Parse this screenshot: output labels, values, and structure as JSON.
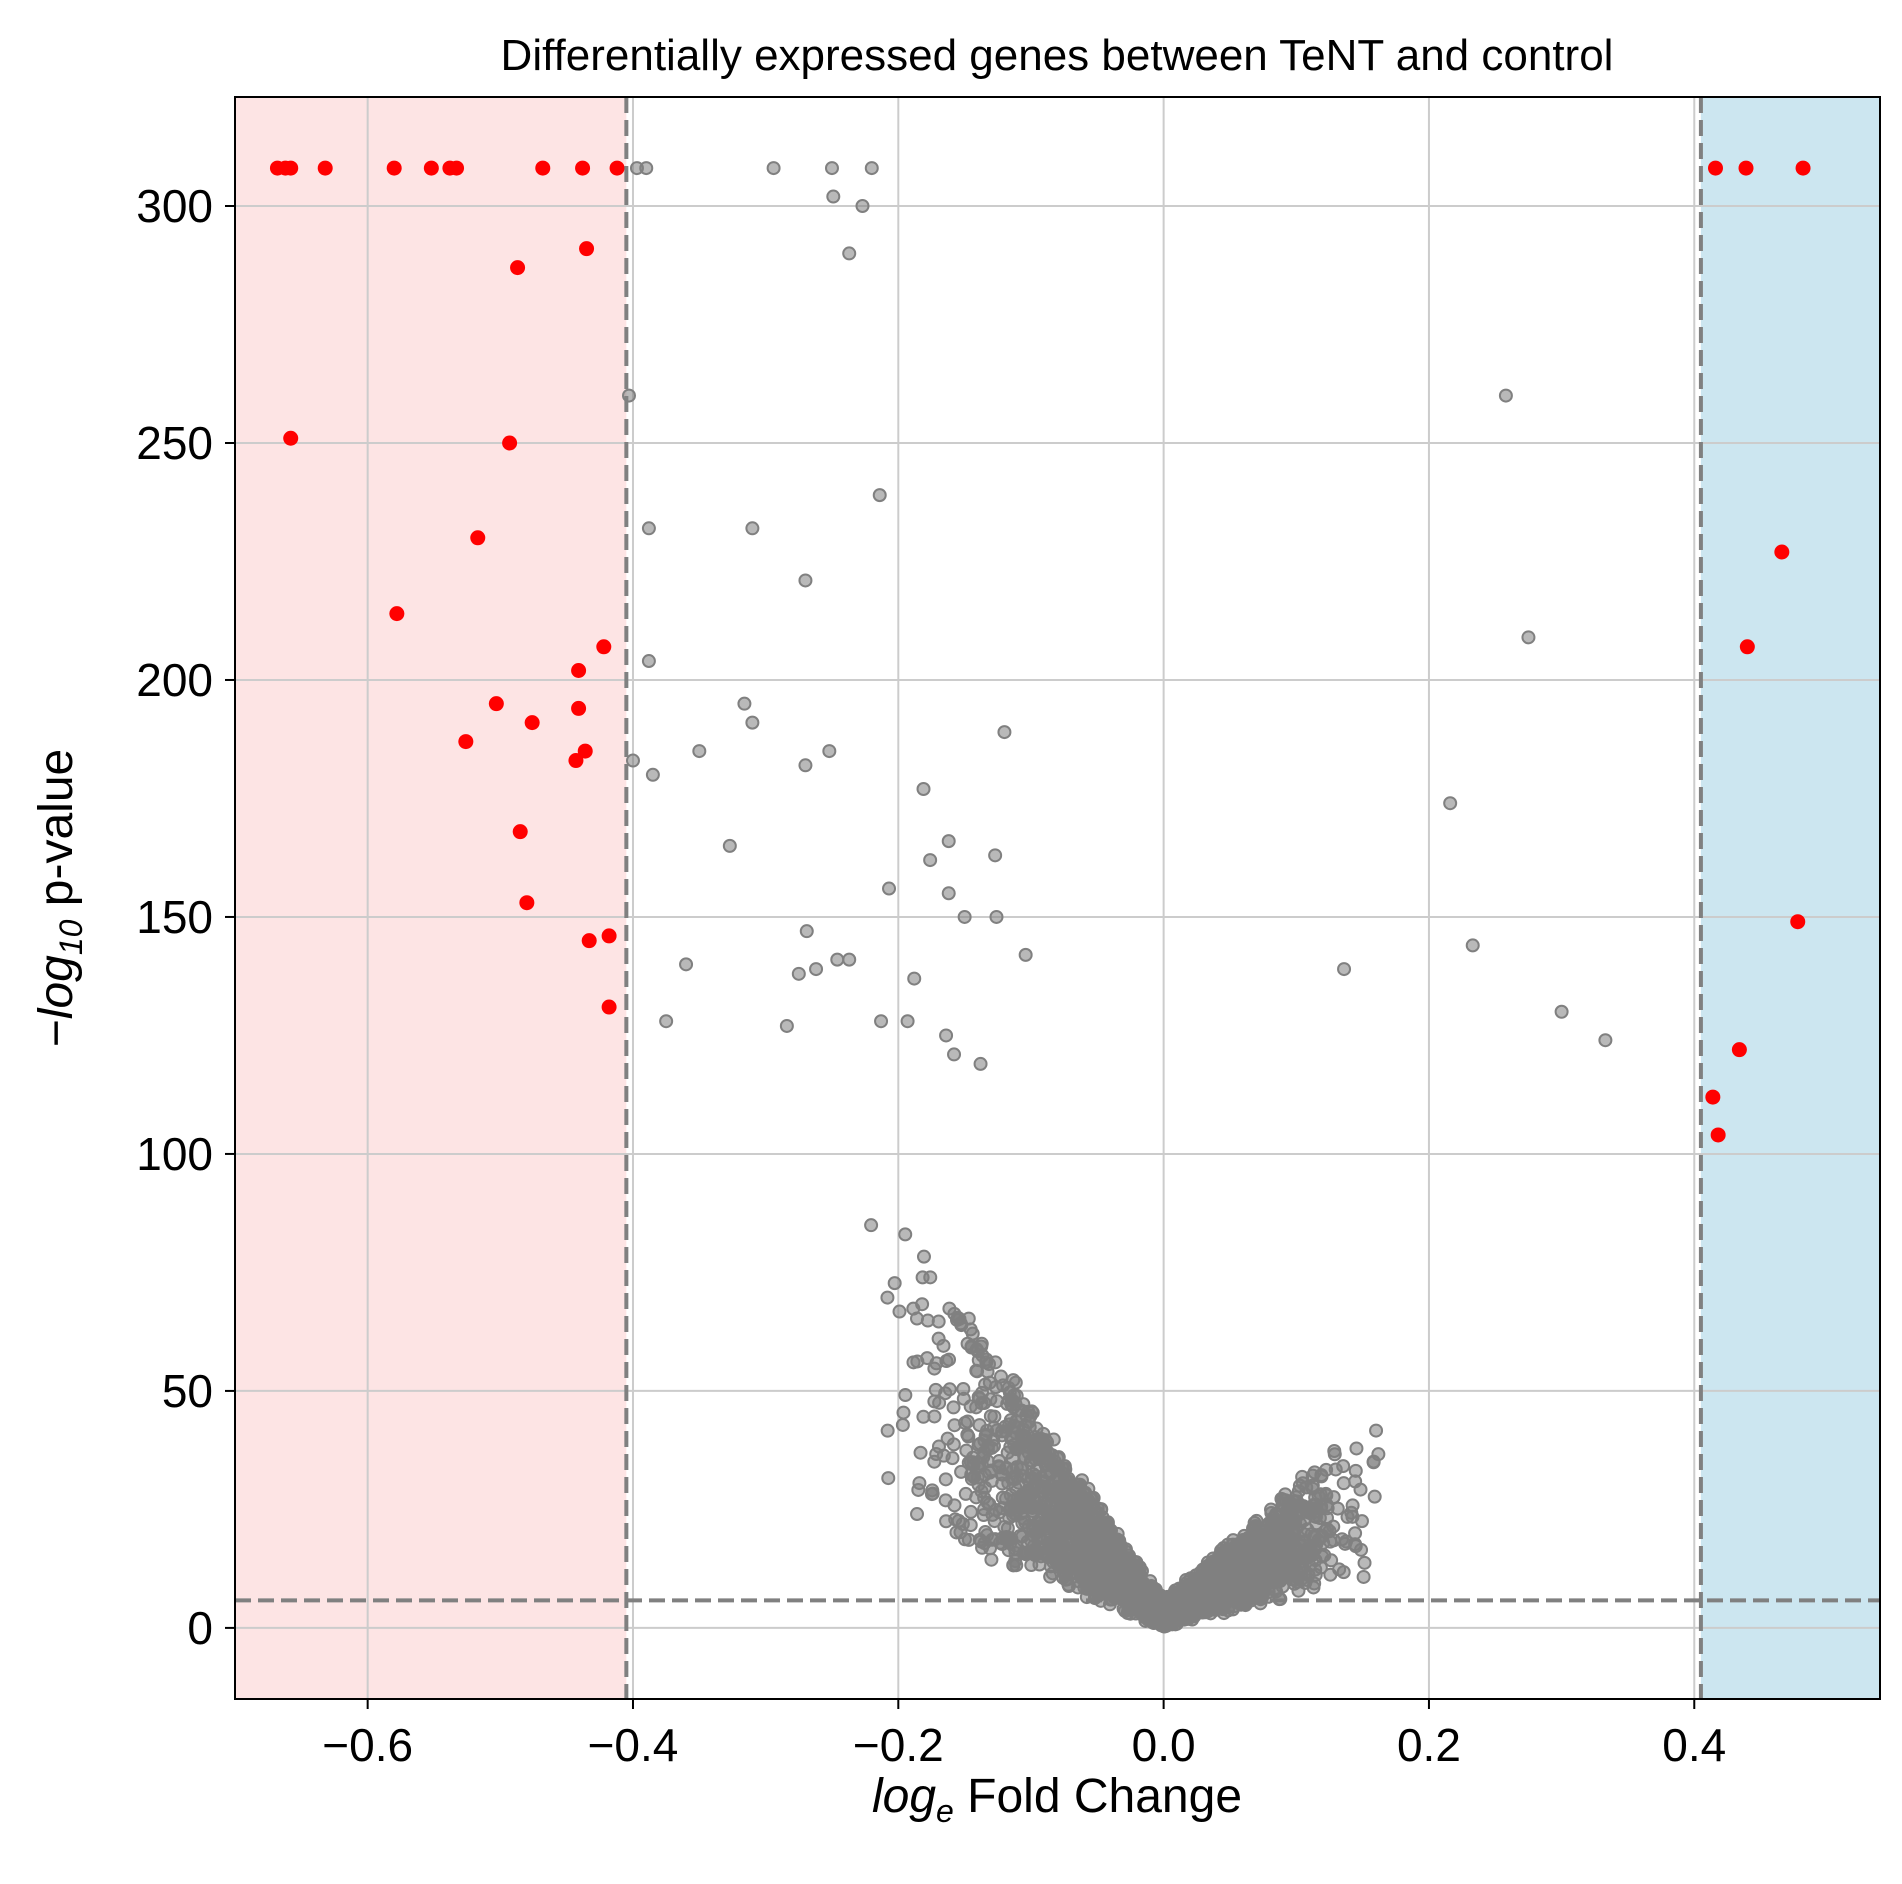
{
  "chart_data": {
    "type": "scatter",
    "title": "Differentially expressed genes between TeNT and control",
    "xlabel": {
      "italic_base": "log",
      "subscript": "e",
      "rest": " Fold Change"
    },
    "ylabel": {
      "prefix": "−",
      "italic_base": "log",
      "subscript": "10",
      "rest": " p-value"
    },
    "xlim": [
      -0.7,
      0.54
    ],
    "ylim": [
      -15,
      323
    ],
    "x_ticks": [
      -0.6,
      -0.4,
      -0.2,
      0.0,
      0.2,
      0.4
    ],
    "x_tick_labels": [
      "−0.6",
      "−0.4",
      "−0.2",
      "0.0",
      "0.2",
      "0.4"
    ],
    "y_ticks": [
      0,
      50,
      100,
      150,
      200,
      250,
      300
    ],
    "y_tick_labels": [
      "0",
      "50",
      "100",
      "150",
      "200",
      "250",
      "300"
    ],
    "grid": true,
    "thresholds": {
      "log_fc": [
        -0.405,
        0.405
      ],
      "neg_log10_p": 5.8
    },
    "region_colors": {
      "down": "#fde4e4",
      "up": "#cce6f0"
    },
    "colors": {
      "significant": "#ff0000",
      "not_significant": "#808080",
      "threshold_line": "#808080",
      "grid": "#cccccc"
    },
    "series": [
      {
        "key": "significant",
        "points": [
          [
            -0.668,
            308
          ],
          [
            -0.662,
            308
          ],
          [
            -0.658,
            308
          ],
          [
            -0.632,
            308
          ],
          [
            -0.58,
            308
          ],
          [
            -0.552,
            308
          ],
          [
            -0.538,
            308
          ],
          [
            -0.533,
            308
          ],
          [
            -0.468,
            308
          ],
          [
            -0.438,
            308
          ],
          [
            -0.412,
            308
          ],
          [
            0.416,
            308
          ],
          [
            0.439,
            308
          ],
          [
            0.482,
            308
          ],
          [
            -0.435,
            291
          ],
          [
            -0.487,
            287
          ],
          [
            -0.658,
            251
          ],
          [
            -0.493,
            250
          ],
          [
            -0.517,
            230
          ],
          [
            -0.578,
            214
          ],
          [
            -0.422,
            207
          ],
          [
            -0.441,
            202
          ],
          [
            -0.503,
            195
          ],
          [
            -0.441,
            194
          ],
          [
            -0.476,
            191
          ],
          [
            -0.526,
            187
          ],
          [
            -0.436,
            185
          ],
          [
            -0.443,
            183
          ],
          [
            -0.485,
            168
          ],
          [
            -0.48,
            153
          ],
          [
            -0.418,
            146
          ],
          [
            -0.433,
            145
          ],
          [
            -0.418,
            131
          ],
          [
            0.466,
            227
          ],
          [
            0.44,
            207
          ],
          [
            0.478,
            149
          ],
          [
            0.434,
            122
          ],
          [
            0.414,
            112
          ],
          [
            0.418,
            104
          ]
        ]
      },
      {
        "key": "not_significant",
        "points": [
          [
            -0.397,
            308
          ],
          [
            -0.39,
            308
          ],
          [
            -0.294,
            308
          ],
          [
            -0.25,
            308
          ],
          [
            -0.22,
            308
          ],
          [
            -0.249,
            302
          ],
          [
            -0.227,
            300
          ],
          [
            -0.237,
            290
          ],
          [
            -0.403,
            260
          ],
          [
            0.258,
            260
          ],
          [
            -0.214,
            239
          ],
          [
            -0.388,
            232
          ],
          [
            -0.31,
            232
          ],
          [
            -0.27,
            221
          ],
          [
            0.275,
            209
          ],
          [
            -0.388,
            204
          ],
          [
            -0.316,
            195
          ],
          [
            -0.31,
            191
          ],
          [
            -0.12,
            189
          ],
          [
            -0.4,
            183
          ],
          [
            -0.35,
            185
          ],
          [
            -0.252,
            185
          ],
          [
            -0.27,
            182
          ],
          [
            -0.385,
            180
          ],
          [
            -0.181,
            177
          ],
          [
            0.216,
            174
          ],
          [
            -0.162,
            166
          ],
          [
            -0.327,
            165
          ],
          [
            -0.176,
            162
          ],
          [
            -0.127,
            163
          ],
          [
            -0.207,
            156
          ],
          [
            -0.162,
            155
          ],
          [
            -0.269,
            147
          ],
          [
            -0.15,
            150
          ],
          [
            -0.126,
            150
          ],
          [
            -0.246,
            141
          ],
          [
            -0.237,
            141
          ],
          [
            -0.262,
            139
          ],
          [
            -0.36,
            140
          ],
          [
            -0.104,
            142
          ],
          [
            -0.188,
            137
          ],
          [
            0.136,
            139
          ],
          [
            0.233,
            144
          ],
          [
            -0.275,
            138
          ],
          [
            -0.375,
            128
          ],
          [
            -0.284,
            127
          ],
          [
            -0.193,
            128
          ],
          [
            -0.213,
            128
          ],
          [
            -0.158,
            121
          ],
          [
            -0.138,
            119
          ],
          [
            0.3,
            130
          ],
          [
            -0.164,
            125
          ],
          [
            0.333,
            124
          ]
        ],
        "scatter_cloud": {
          "count": 3000,
          "x_range": [
            -0.37,
            0.37
          ],
          "vertex_y": 0
        }
      }
    ]
  }
}
